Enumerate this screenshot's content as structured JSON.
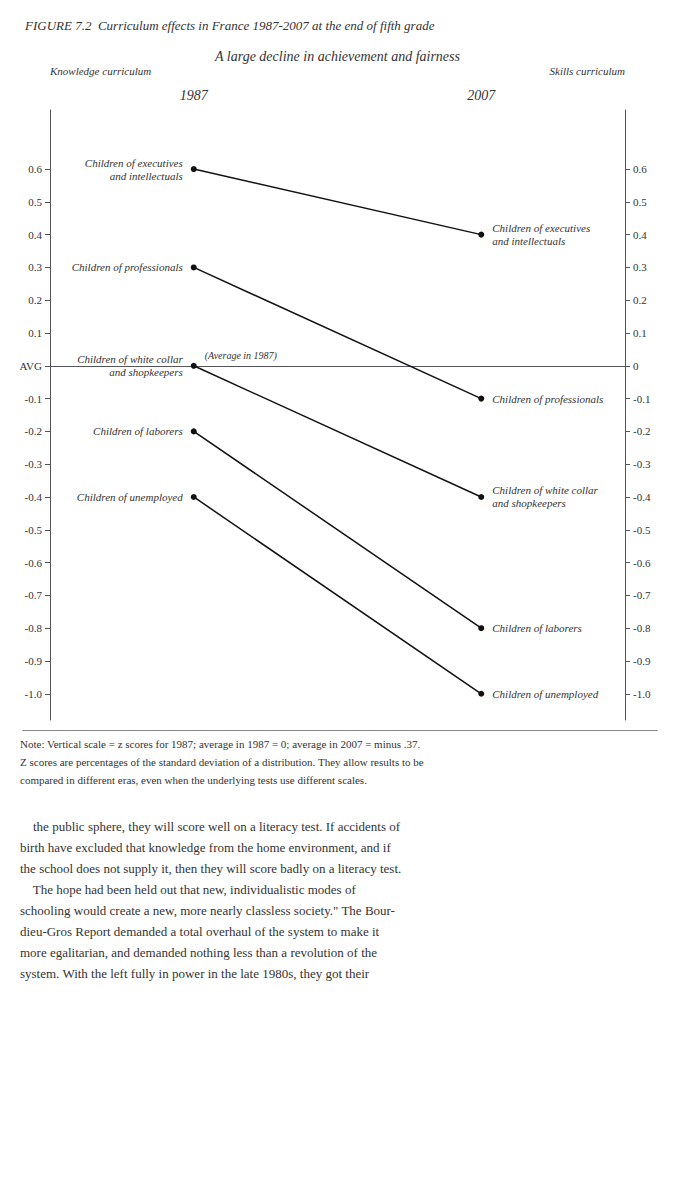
{
  "chart_data": {
    "type": "line",
    "title": "FIGURE 7.2  Curriculum effects in France 1987-2007 at the end of fifth grade",
    "subtitle": "A large decline in achievement and fairness",
    "ylabel": "Knowledge curriculum",
    "y2label": "Skills curriculum",
    "categories": [
      "1987",
      "2007"
    ],
    "color": "#111111",
    "series": [
      {
        "name": "Children of executives\nand intellectuals",
        "values": [
          0.6,
          0.4
        ]
      },
      {
        "name": "Children of professionals",
        "values": [
          0.3,
          -0.1
        ]
      },
      {
        "name": "Children of white collar\nand shopkeepers",
        "values": [
          0.0,
          -0.4
        ]
      },
      {
        "name": "Children of laborers",
        "values": [
          -0.2,
          -0.8
        ]
      },
      {
        "name": "Children of unemployed",
        "values": [
          -0.4,
          -1.0
        ]
      }
    ],
    "ylim": [
      -1.08,
      0.78
    ],
    "yticks": [
      0.6,
      0.5,
      0.4,
      0.3,
      0.2,
      0.1,
      {
        "value": 0,
        "label": "AVG"
      },
      -0.1,
      -0.2,
      -0.3,
      -0.4,
      -0.5,
      -0.6,
      -0.7,
      -0.8,
      -0.9,
      {
        "value": -1.0,
        "label": "-1.0"
      }
    ],
    "y2lim": [
      -1.08,
      0.78
    ],
    "y2ticks": [
      0.6,
      0.5,
      0.4,
      0.3,
      0.2,
      0.1,
      0,
      -0.1,
      -0.2,
      -0.3,
      -0.4,
      -0.5,
      -0.6,
      -0.7,
      -0.8,
      -0.9,
      {
        "value": -1.0,
        "label": "-1.0"
      }
    ],
    "annotations": [
      {
        "text": "(Average in 1987)",
        "x": "1987",
        "y": 0
      }
    ],
    "notes": [
      "Note: Vertical scale = z scores for 1987; average in 1987 = 0; average in 2007 = minus .37.",
      "Z scores are percentages of the standard deviation of a distribution. They allow results to be",
      "compared in different eras, even when the underlying tests use different scales."
    ],
    "body_text": "    the public sphere, they will score well on a literacy test. If accidents of\nbirth have excluded that knowledge from the home environment, and if\nthe school does not supply it, then they will score badly on a literacy test.\n    The hope had been held out that new, individualistic modes of\nschooling would create a new, more nearly classless society.\" The Bour-\ndieu-Gros Report demanded a total overhaul of the system to make it\nmore egalitarian, and demanded nothing less than a revolution of the\nsystem. With the left fully in power in the late 1980s, they got their",
    "grid": false
  }
}
